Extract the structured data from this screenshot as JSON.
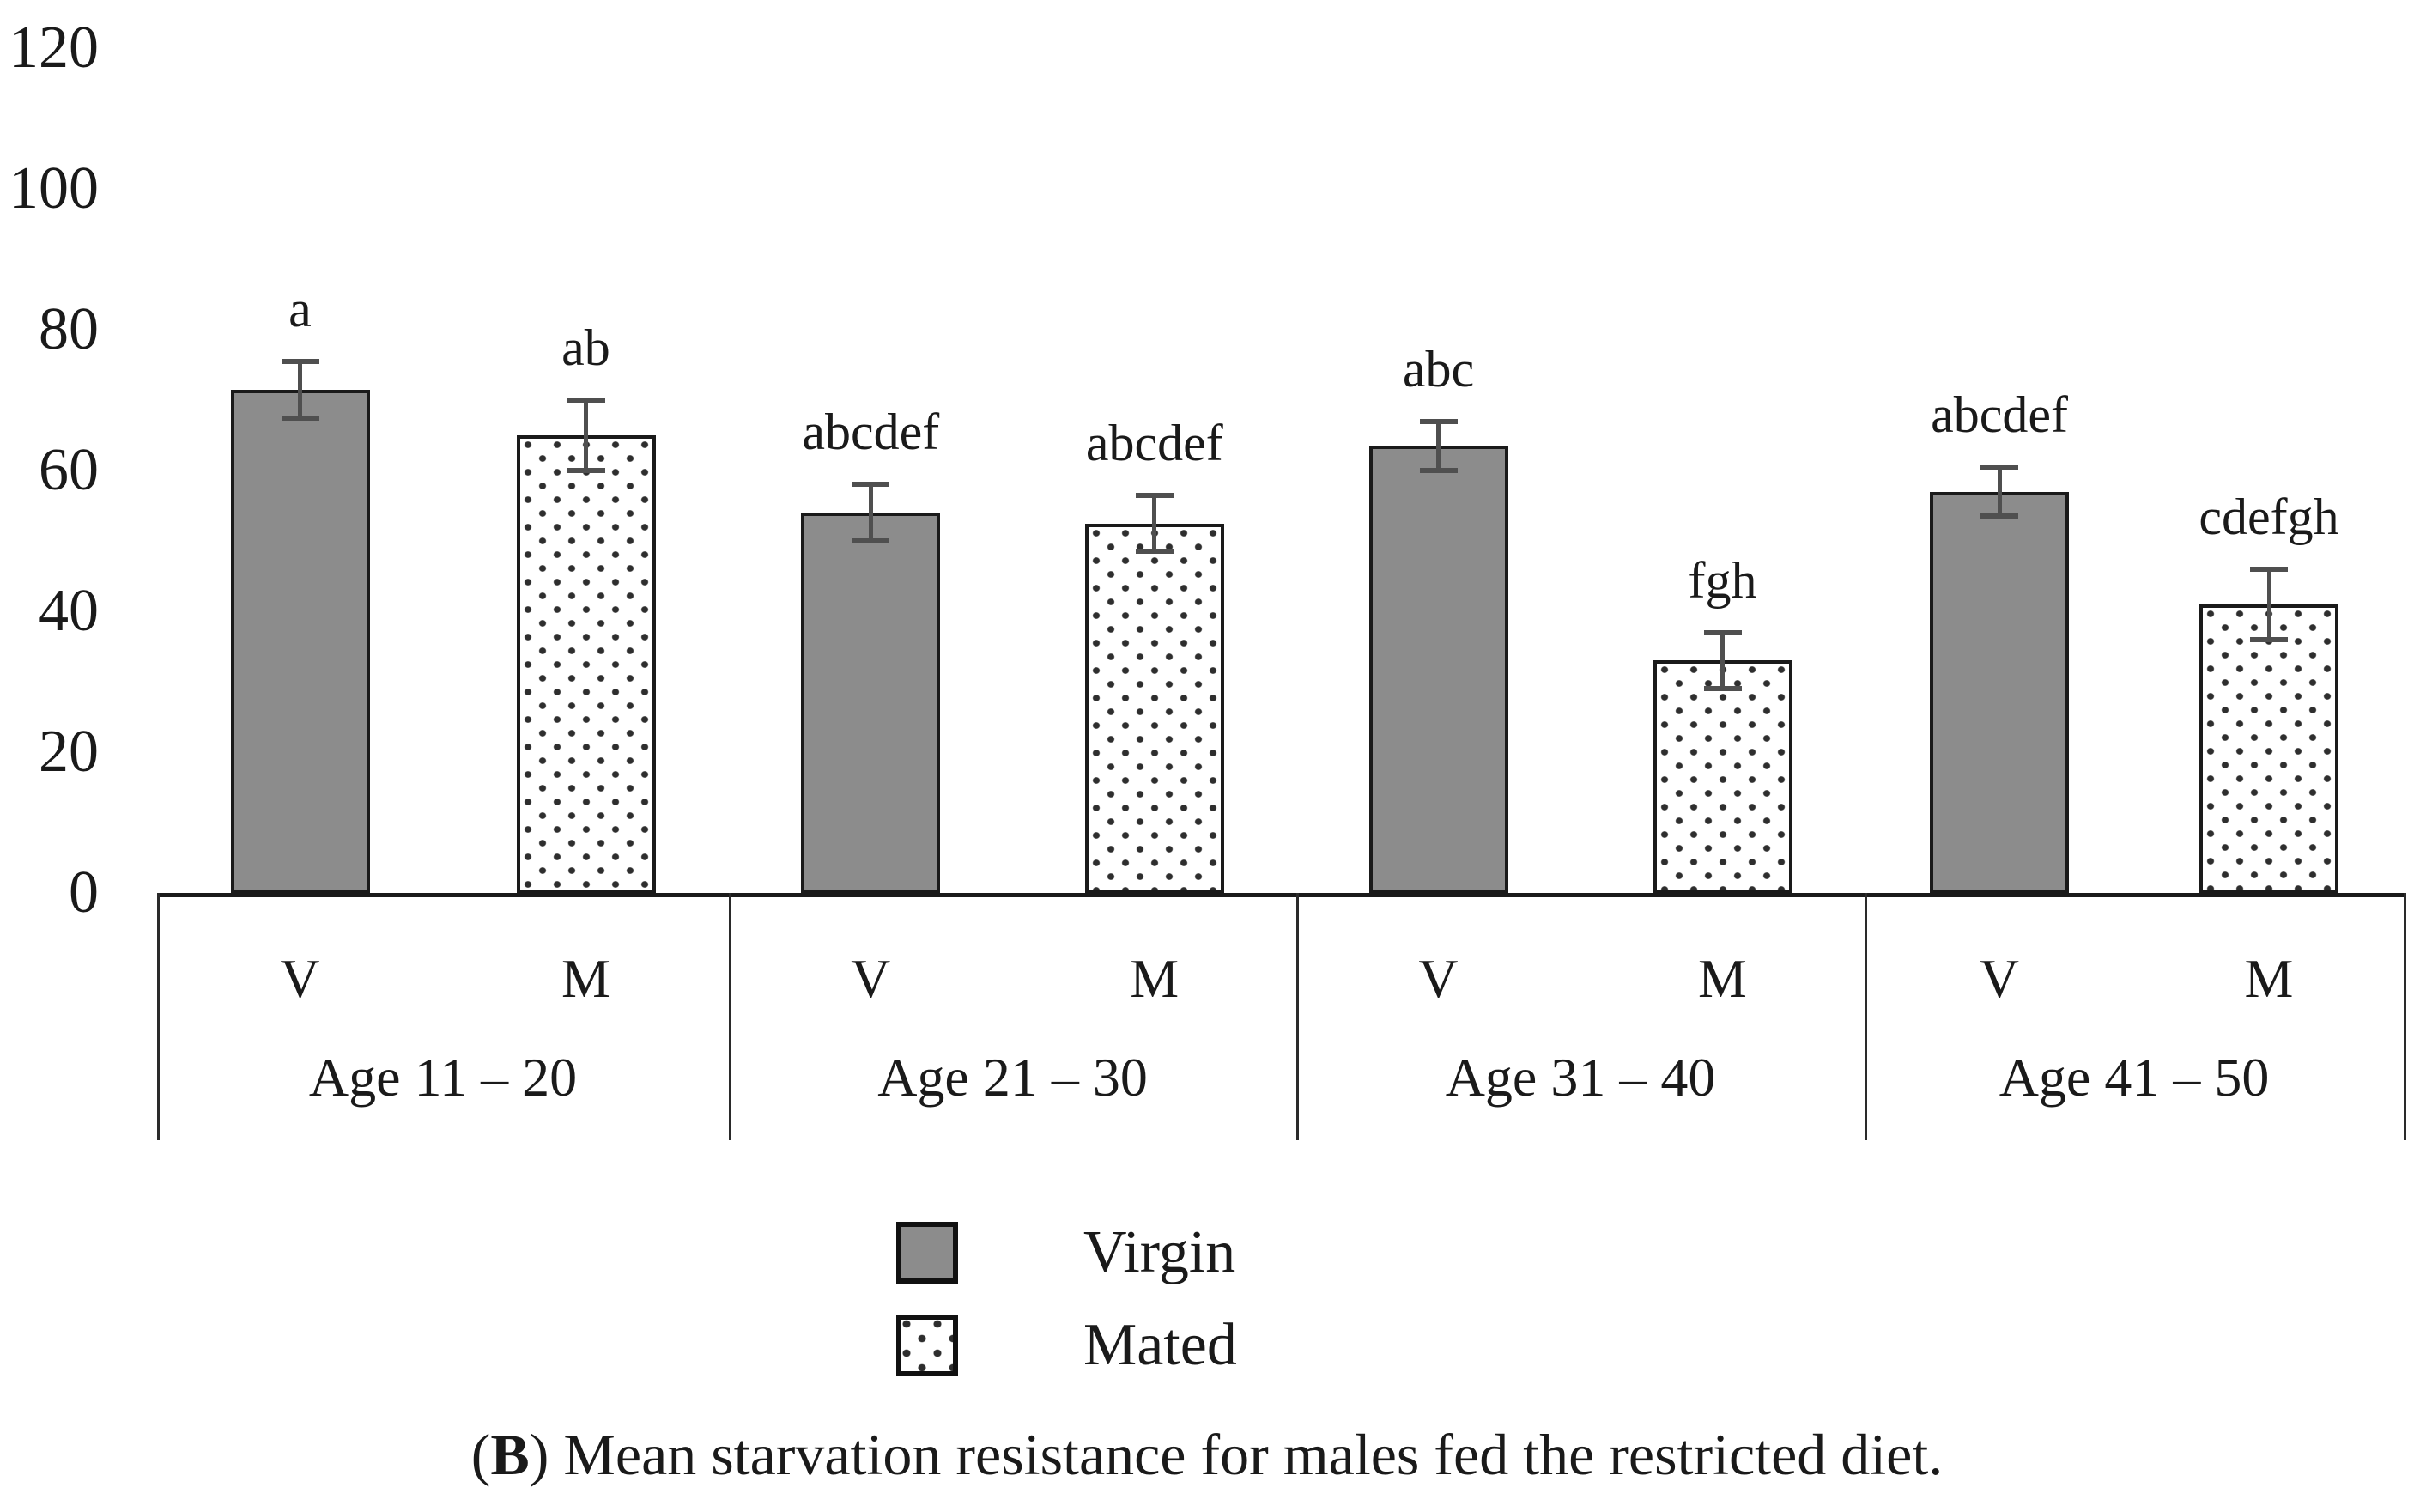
{
  "colors": {
    "virgin_fill": "#8c8c8c",
    "mated_fill": "#ffffff",
    "bar_border": "#1a1a1a",
    "error_bar": "#4f4f4f",
    "text": "#1a1a1a"
  },
  "legend": {
    "virgin_label": "Virgin",
    "mated_label": "Mated"
  },
  "caption": {
    "open_paren": "(",
    "panel_letter": "B",
    "text": ") Mean starvation resistance for males fed the restricted diet."
  },
  "chart_data": {
    "type": "bar",
    "title": "",
    "xlabel": "",
    "ylabel": "",
    "ylim": [
      0,
      120
    ],
    "yticks": [
      0,
      20,
      40,
      60,
      80,
      100,
      120
    ],
    "grid": false,
    "legend_position": "bottom",
    "series_names": [
      "Virgin",
      "Mated"
    ],
    "bar_sublabels": [
      "V",
      "M"
    ],
    "groups": [
      {
        "label": "Age 11 – 20",
        "bars": [
          {
            "sublabel": "V",
            "series": "Virgin",
            "value": 71.5,
            "error": 4,
            "sig": "a"
          },
          {
            "sublabel": "M",
            "series": "Mated",
            "value": 65,
            "error": 5,
            "sig": "ab"
          }
        ]
      },
      {
        "label": "Age 21 – 30",
        "bars": [
          {
            "sublabel": "V",
            "series": "Virgin",
            "value": 54,
            "error": 4,
            "sig": "abcdef"
          },
          {
            "sublabel": "M",
            "series": "Mated",
            "value": 52.5,
            "error": 4,
            "sig": "abcdef"
          }
        ]
      },
      {
        "label": "Age 31 – 40",
        "bars": [
          {
            "sublabel": "V",
            "series": "Virgin",
            "value": 63.5,
            "error": 3.5,
            "sig": "abc"
          },
          {
            "sublabel": "M",
            "series": "Mated",
            "value": 33,
            "error": 4,
            "sig": "fgh"
          }
        ]
      },
      {
        "label": "Age 41 – 50",
        "bars": [
          {
            "sublabel": "V",
            "series": "Virgin",
            "value": 57,
            "error": 3.5,
            "sig": "abcdef"
          },
          {
            "sublabel": "M",
            "series": "Mated",
            "value": 41,
            "error": 5,
            "sig": "cdefgh"
          }
        ]
      }
    ]
  }
}
